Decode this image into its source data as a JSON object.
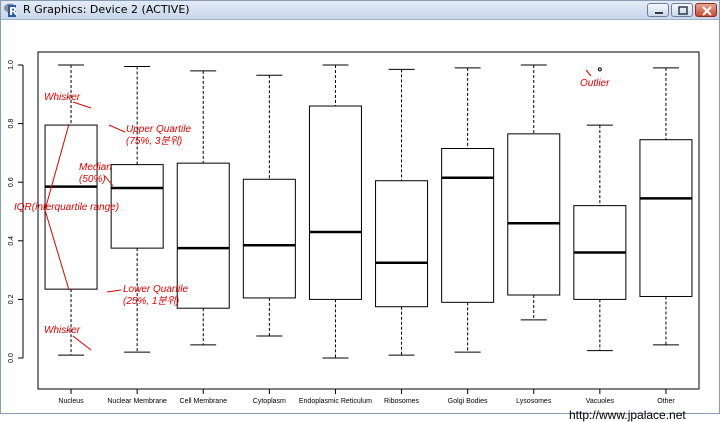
{
  "window": {
    "title": "R Graphics: Device 2 (ACTIVE)",
    "icons": [
      "r-logo-icon",
      "minimize-icon",
      "maximize-icon",
      "close-icon"
    ]
  },
  "chart_data": {
    "type": "box",
    "title": "",
    "xlabel": "",
    "ylabel": "",
    "ylim": [
      0.0,
      1.0
    ],
    "yticks": [
      "0.0",
      "0.2",
      "0.4",
      "0.6",
      "0.8",
      "1.0"
    ],
    "categories": [
      "Nucleus",
      "Nuclear Membrane",
      "Cell Membrane",
      "Cytoplasm",
      "Endoplasmic Reticulum",
      "Ribosomes",
      "Golgi Bodies",
      "Lysosomes",
      "Vacuoles",
      "Other"
    ],
    "boxes": [
      {
        "min": 0.01,
        "q1": 0.235,
        "median": 0.585,
        "q3": 0.795,
        "max": 1.0
      },
      {
        "min": 0.02,
        "q1": 0.375,
        "median": 0.58,
        "q3": 0.66,
        "max": 0.995
      },
      {
        "min": 0.045,
        "q1": 0.17,
        "median": 0.375,
        "q3": 0.665,
        "max": 0.98
      },
      {
        "min": 0.075,
        "q1": 0.205,
        "median": 0.385,
        "q3": 0.61,
        "max": 0.965
      },
      {
        "min": 0.0,
        "q1": 0.2,
        "median": 0.43,
        "q3": 0.86,
        "max": 1.0
      },
      {
        "min": 0.01,
        "q1": 0.175,
        "median": 0.325,
        "q3": 0.605,
        "max": 0.985
      },
      {
        "min": 0.02,
        "q1": 0.19,
        "median": 0.615,
        "q3": 0.715,
        "max": 0.99
      },
      {
        "min": 0.13,
        "q1": 0.215,
        "median": 0.46,
        "q3": 0.765,
        "max": 1.0
      },
      {
        "min": 0.025,
        "q1": 0.2,
        "median": 0.36,
        "q3": 0.52,
        "max": 0.795
      },
      {
        "min": 0.045,
        "q1": 0.21,
        "median": 0.545,
        "q3": 0.745,
        "max": 0.99
      }
    ],
    "outliers": [
      {
        "category": "Vacuoles",
        "y": 0.985
      }
    ],
    "annotations": {
      "whisker_top": "Whisker",
      "upper_quartile": "Upper Quartile",
      "upper_quartile_sub": "(75%, 3분위)",
      "median": "Median",
      "median_sub": "(50%)",
      "iqr": "IQR(interquartile range)",
      "lower_quartile": "Lower Quartile",
      "lower_quartile_sub": "(25%, 1분위)",
      "whisker_bottom": "Whisker",
      "outlier": "Outlier"
    },
    "annotation_color": "#e00000",
    "grid": false,
    "legend": "none"
  },
  "watermark": "http://www.jpalace.net"
}
